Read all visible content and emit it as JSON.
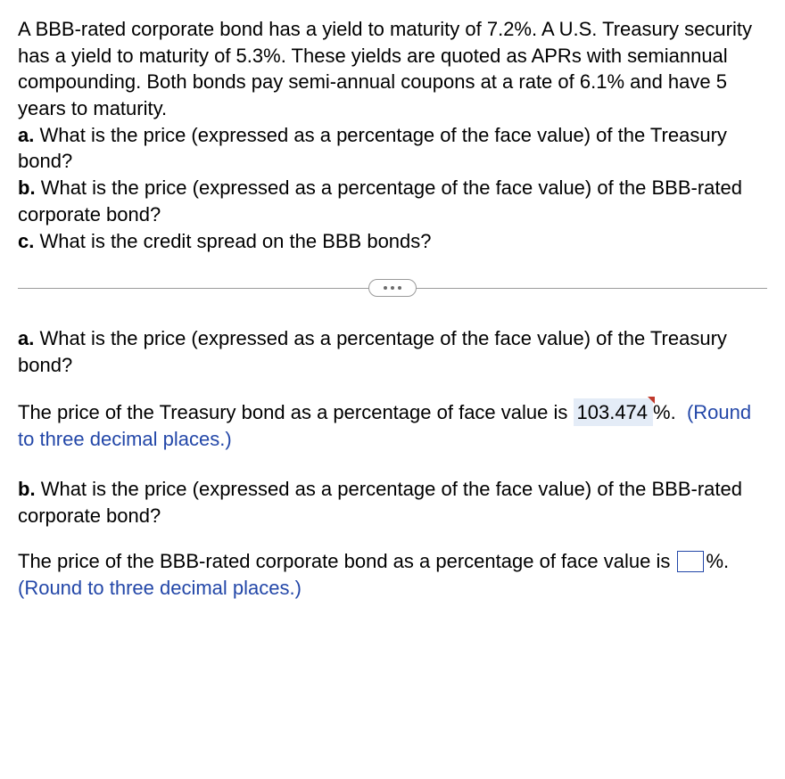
{
  "problem": {
    "intro": "A BBB-rated corporate bond has a yield to maturity of 7.2%. A U.S. Treasury security has a yield to maturity of 5.3%. These yields are quoted as APRs with semiannual compounding. Both bonds pay semi-annual coupons at a rate of 6.1% and have 5 years to maturity.",
    "parts": {
      "a": {
        "label": "a.",
        "text": "What is the price (expressed as a percentage of the face value) of the Treasury bond?"
      },
      "b": {
        "label": "b.",
        "text": "What is the price (expressed as a percentage of the face value) of the BBB-rated corporate bond?"
      },
      "c": {
        "label": "c.",
        "text": "What is the credit spread on the BBB bonds?"
      }
    }
  },
  "answers": {
    "a": {
      "question_label": "a.",
      "question_text": "What is the price (expressed as a percentage of the face value) of the Treasury bond?",
      "answer_lead": "The price of the Treasury bond as a percentage of face value is",
      "value": "103.474",
      "unit": "%.",
      "instruction": "(Round to three decimal places.)"
    },
    "b": {
      "question_label": "b.",
      "question_text": "What is the price (expressed as a percentage of the face value) of the BBB-rated corporate bond?",
      "answer_lead": "The price of the BBB-rated corporate bond as a percentage of face value is",
      "unit": "%.",
      "instruction": "(Round to three decimal places.)"
    }
  },
  "colors": {
    "text": "#000000",
    "instruction": "#2347a8",
    "input_border": "#2347a8",
    "filled_bg": "#e4ecf7",
    "flag": "#c0392b",
    "divider": "#9a9a9a",
    "background": "#ffffff"
  }
}
